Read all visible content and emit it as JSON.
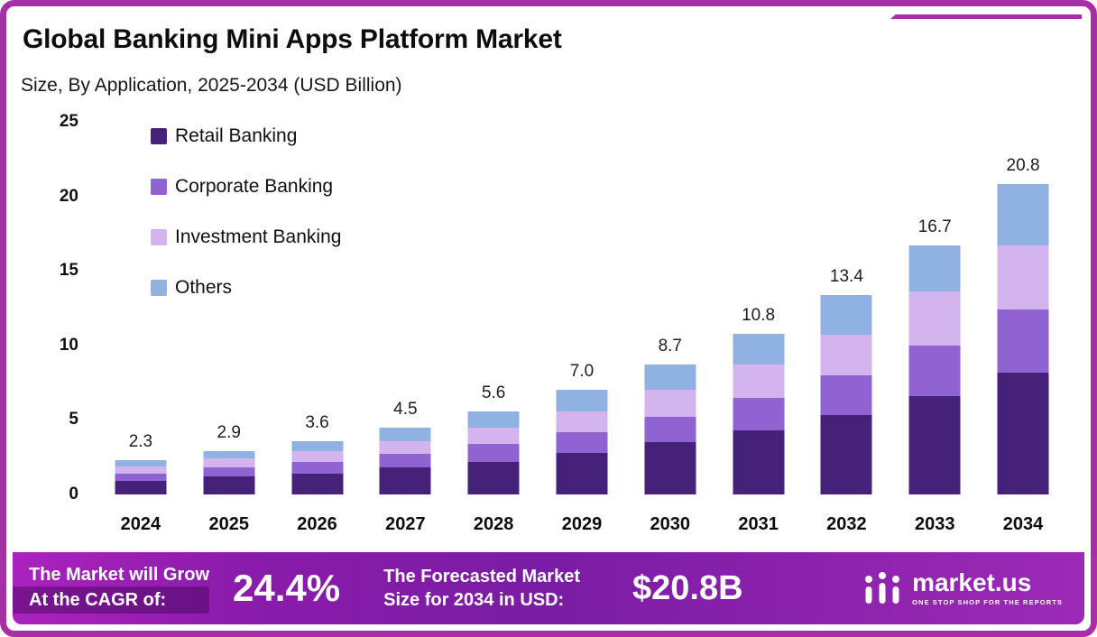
{
  "frame": {
    "border_color": "#a62fa8"
  },
  "header": {
    "title": "Global Banking Mini Apps Platform Market",
    "subtitle": "Size, By Application, 2025-2034 (USD Billion)"
  },
  "chart_data": {
    "type": "bar",
    "stacked": true,
    "title": "Global Banking Mini Apps Platform Market Size, By Application, 2025-2034 (USD Billion)",
    "xlabel": "",
    "ylabel": "USD Billion",
    "ylim": [
      0,
      25
    ],
    "yticks": [
      0,
      5,
      10,
      15,
      20,
      25
    ],
    "grid": false,
    "legend_position": "top-left",
    "categories": [
      "2024",
      "2025",
      "2026",
      "2027",
      "2028",
      "2029",
      "2030",
      "2031",
      "2032",
      "2033",
      "2034"
    ],
    "totals": [
      2.3,
      2.9,
      3.6,
      4.5,
      5.6,
      7.0,
      8.7,
      10.8,
      13.4,
      16.7,
      20.8
    ],
    "series": [
      {
        "name": "Retail Banking",
        "color": "#45217a",
        "values": [
          0.9,
          1.2,
          1.4,
          1.8,
          2.2,
          2.8,
          3.5,
          4.3,
          5.3,
          6.6,
          8.2
        ]
      },
      {
        "name": "Corporate Banking",
        "color": "#8f63d2",
        "values": [
          0.5,
          0.6,
          0.8,
          0.9,
          1.2,
          1.4,
          1.7,
          2.2,
          2.7,
          3.4,
          4.2
        ]
      },
      {
        "name": "Investment Banking",
        "color": "#d4b4ee",
        "values": [
          0.5,
          0.6,
          0.7,
          0.9,
          1.1,
          1.4,
          1.8,
          2.2,
          2.7,
          3.6,
          4.3
        ]
      },
      {
        "name": "Others",
        "color": "#8fb2e2",
        "values": [
          0.4,
          0.5,
          0.7,
          0.9,
          1.1,
          1.4,
          1.7,
          2.1,
          2.7,
          3.1,
          4.1
        ]
      }
    ]
  },
  "footer": {
    "cagr_label_line1": "The Market will Grow",
    "cagr_label_line2": "At the CAGR of:",
    "cagr_value": "24.4%",
    "forecast_label_line1": "The Forecasted Market",
    "forecast_label_line2": "Size for 2034 in USD:",
    "forecast_value": "$20.8B",
    "brand": {
      "name": "market.us",
      "tagline": "ONE STOP SHOP FOR THE REPORTS"
    }
  }
}
